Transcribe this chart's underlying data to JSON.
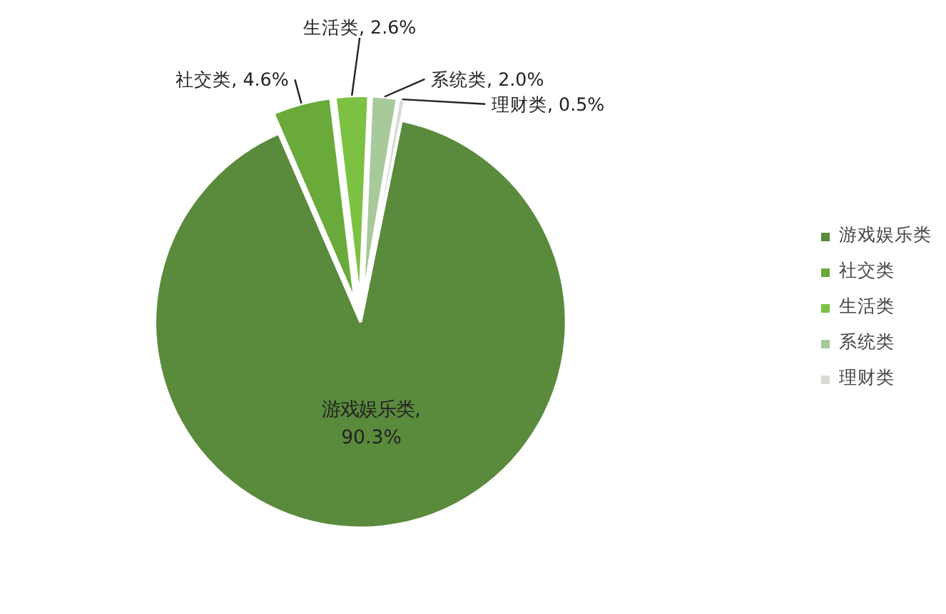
{
  "chart_data": {
    "type": "pie",
    "categories": [
      "游戏娱乐类",
      "社交类",
      "生活类",
      "系统类",
      "理财类"
    ],
    "values": [
      90.3,
      4.6,
      2.6,
      2.0,
      0.5
    ],
    "colors": [
      "#5a8a3c",
      "#6aaa3a",
      "#7dc142",
      "#a8c99a",
      "#d8dcd5"
    ],
    "value_labels": [
      "游戏娱乐类, 90.3%",
      "社交类, 4.6%",
      "生活类, 2.6%",
      "系统类, 2.0%",
      "理财类, 0.5%"
    ],
    "legend": "right"
  }
}
